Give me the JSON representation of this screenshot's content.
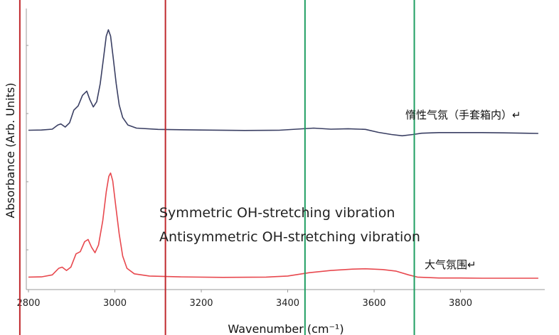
{
  "chart_data": {
    "type": "line",
    "title": "",
    "xlabel": "Wavenumber (cm⁻¹)",
    "ylabel": "Absorbance (Arb. Units)",
    "xlim": [
      2795,
      3995
    ],
    "x_ticks": [
      2800,
      3000,
      3200,
      3400,
      3600,
      3800
    ],
    "grid": false,
    "series": [
      {
        "name": "惰性气氛（手套箱内）",
        "color": "#3a3f63",
        "points": [
          [
            2800,
            0.01
          ],
          [
            2830,
            0.012
          ],
          [
            2855,
            0.02
          ],
          [
            2868,
            0.06
          ],
          [
            2875,
            0.07
          ],
          [
            2885,
            0.04
          ],
          [
            2895,
            0.08
          ],
          [
            2905,
            0.2
          ],
          [
            2915,
            0.24
          ],
          [
            2925,
            0.34
          ],
          [
            2935,
            0.38
          ],
          [
            2942,
            0.3
          ],
          [
            2950,
            0.23
          ],
          [
            2958,
            0.28
          ],
          [
            2966,
            0.45
          ],
          [
            2974,
            0.7
          ],
          [
            2980,
            0.9
          ],
          [
            2985,
            0.96
          ],
          [
            2990,
            0.9
          ],
          [
            2996,
            0.7
          ],
          [
            3003,
            0.45
          ],
          [
            3010,
            0.25
          ],
          [
            3018,
            0.13
          ],
          [
            3030,
            0.06
          ],
          [
            3050,
            0.03
          ],
          [
            3100,
            0.018
          ],
          [
            3200,
            0.012
          ],
          [
            3300,
            0.008
          ],
          [
            3380,
            0.01
          ],
          [
            3420,
            0.02
          ],
          [
            3460,
            0.03
          ],
          [
            3500,
            0.02
          ],
          [
            3540,
            0.024
          ],
          [
            3580,
            0.018
          ],
          [
            3610,
            -0.01
          ],
          [
            3640,
            -0.03
          ],
          [
            3665,
            -0.042
          ],
          [
            3690,
            -0.03
          ],
          [
            3710,
            -0.018
          ],
          [
            3750,
            -0.012
          ],
          [
            3800,
            -0.012
          ],
          [
            3850,
            -0.012
          ],
          [
            3900,
            -0.015
          ],
          [
            3950,
            -0.018
          ],
          [
            3980,
            -0.02
          ]
        ]
      },
      {
        "name": "大气氛围",
        "color": "#e8484e",
        "points": [
          [
            2800,
            0.01
          ],
          [
            2830,
            0.012
          ],
          [
            2855,
            0.03
          ],
          [
            2870,
            0.09
          ],
          [
            2878,
            0.1
          ],
          [
            2888,
            0.07
          ],
          [
            2898,
            0.1
          ],
          [
            2910,
            0.22
          ],
          [
            2920,
            0.24
          ],
          [
            2930,
            0.33
          ],
          [
            2938,
            0.35
          ],
          [
            2946,
            0.28
          ],
          [
            2954,
            0.23
          ],
          [
            2962,
            0.3
          ],
          [
            2972,
            0.52
          ],
          [
            2980,
            0.78
          ],
          [
            2986,
            0.92
          ],
          [
            2990,
            0.95
          ],
          [
            2995,
            0.88
          ],
          [
            3002,
            0.65
          ],
          [
            3010,
            0.4
          ],
          [
            3018,
            0.2
          ],
          [
            3028,
            0.09
          ],
          [
            3045,
            0.04
          ],
          [
            3080,
            0.02
          ],
          [
            3150,
            0.012
          ],
          [
            3250,
            0.008
          ],
          [
            3350,
            0.01
          ],
          [
            3400,
            0.02
          ],
          [
            3450,
            0.05
          ],
          [
            3500,
            0.07
          ],
          [
            3550,
            0.082
          ],
          [
            3580,
            0.085
          ],
          [
            3620,
            0.078
          ],
          [
            3650,
            0.065
          ],
          [
            3680,
            0.03
          ],
          [
            3700,
            0.01
          ],
          [
            3750,
            0.002
          ],
          [
            3800,
            0.002
          ],
          [
            3850,
            0.0
          ],
          [
            3900,
            0.0
          ],
          [
            3950,
            0.0
          ],
          [
            3980,
            0.0
          ]
        ]
      }
    ],
    "vertical_lines": [
      {
        "x": 2780,
        "color": "#c0282d"
      },
      {
        "x": 3117,
        "color": "#c0282d"
      },
      {
        "x": 3440,
        "color": "#1f9e62"
      },
      {
        "x": 3693,
        "color": "#1f9e62"
      }
    ],
    "annotations": [
      {
        "text": "惰性气氛（手套箱内）↵",
        "color": "#111111"
      },
      {
        "text": "大气氛围↵",
        "color": "#111111"
      },
      {
        "text": "Symmetric OH-stretching vibration",
        "color": "#222222"
      },
      {
        "text": "Antisymmetric OH-stretching vibration",
        "color": "#222222"
      }
    ]
  }
}
